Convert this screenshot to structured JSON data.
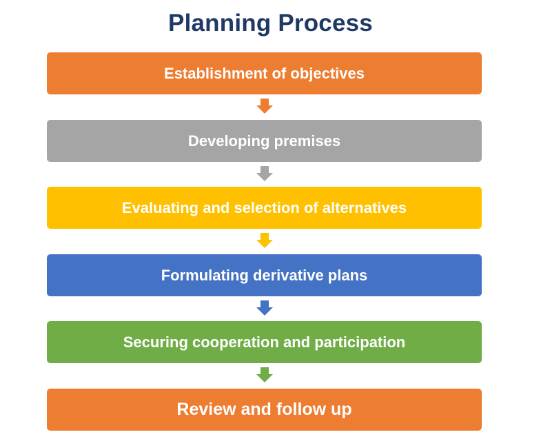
{
  "title": "Planning Process",
  "steps": [
    {
      "label": "Establishment of objectives",
      "color": "#ed7d31"
    },
    {
      "label": "Developing premises",
      "color": "#a5a5a5"
    },
    {
      "label": "Evaluating and selection of alternatives",
      "color": "#ffc000"
    },
    {
      "label": "Formulating derivative plans",
      "color": "#4472c4"
    },
    {
      "label": "Securing cooperation and participation",
      "color": "#70ad47"
    },
    {
      "label": "Review and follow up",
      "color": "#ed7d31"
    }
  ],
  "arrows": [
    {
      "icon": "down-arrow-icon",
      "color": "#ed7d31"
    },
    {
      "icon": "down-arrow-icon",
      "color": "#a5a5a5"
    },
    {
      "icon": "down-arrow-icon",
      "color": "#ffc000"
    },
    {
      "icon": "down-arrow-icon",
      "color": "#4472c4"
    },
    {
      "icon": "down-arrow-icon",
      "color": "#70ad47"
    }
  ]
}
